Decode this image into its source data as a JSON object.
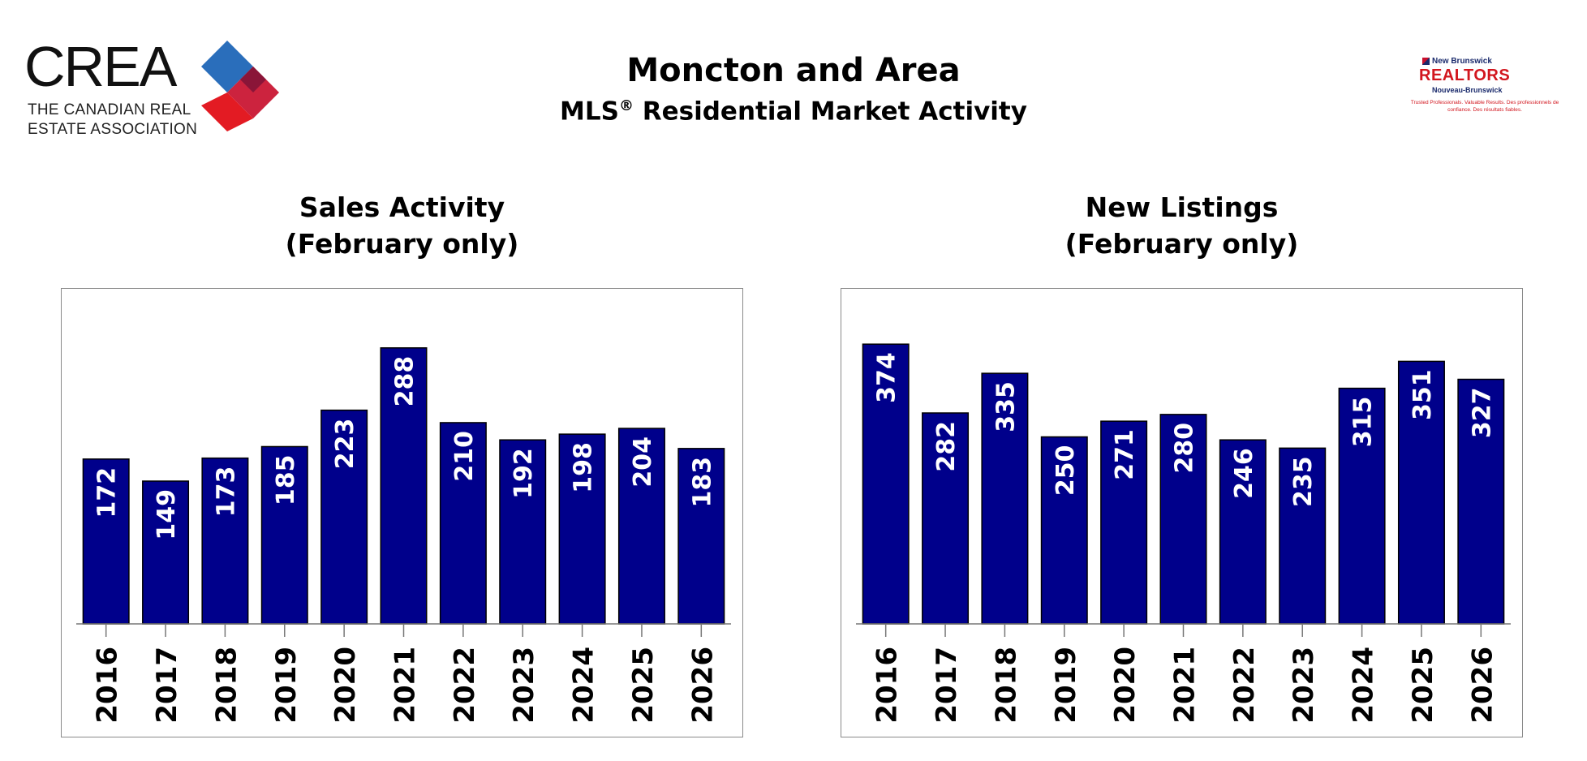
{
  "logos": {
    "crea": {
      "word": "CREA",
      "line1": "THE CANADIAN REAL",
      "line2": "ESTATE ASSOCIATION"
    },
    "nb": {
      "top": "New Brunswick",
      "name": "REALTORS",
      "fr": "Nouveau-Brunswick",
      "tagline": "Trusted Professionals. Valuable Results. Des professionnels de confiance. Des résultats fiables."
    }
  },
  "header": {
    "title": "Moncton and Area",
    "subtitle_pre": "MLS",
    "subtitle_mark": "®",
    "subtitle_post": " Residential Market Activity"
  },
  "colors": {
    "bar": "#00008b",
    "bar_outline": "#000000",
    "frame": "#8a8a8a",
    "label": "#ffffff"
  },
  "chart_data": [
    {
      "type": "bar",
      "title_line1": "Sales Activity",
      "title_line2": "(February only)",
      "categories": [
        "2016",
        "2017",
        "2018",
        "2019",
        "2020",
        "2021",
        "2022",
        "2023",
        "2024",
        "2025",
        "2026"
      ],
      "values": [
        172,
        149,
        173,
        185,
        223,
        288,
        210,
        192,
        198,
        204,
        183
      ],
      "ylim": [
        0,
        320
      ],
      "grid": false,
      "data_labels": "inside-top-rotated"
    },
    {
      "type": "bar",
      "title_line1": "New Listings",
      "title_line2": "(February only)",
      "categories": [
        "2016",
        "2017",
        "2018",
        "2019",
        "2020",
        "2021",
        "2022",
        "2023",
        "2024",
        "2025",
        "2026"
      ],
      "values": [
        374,
        282,
        335,
        250,
        271,
        280,
        246,
        235,
        315,
        351,
        327
      ],
      "ylim": [
        0,
        410
      ],
      "grid": false,
      "data_labels": "inside-top-rotated"
    }
  ]
}
